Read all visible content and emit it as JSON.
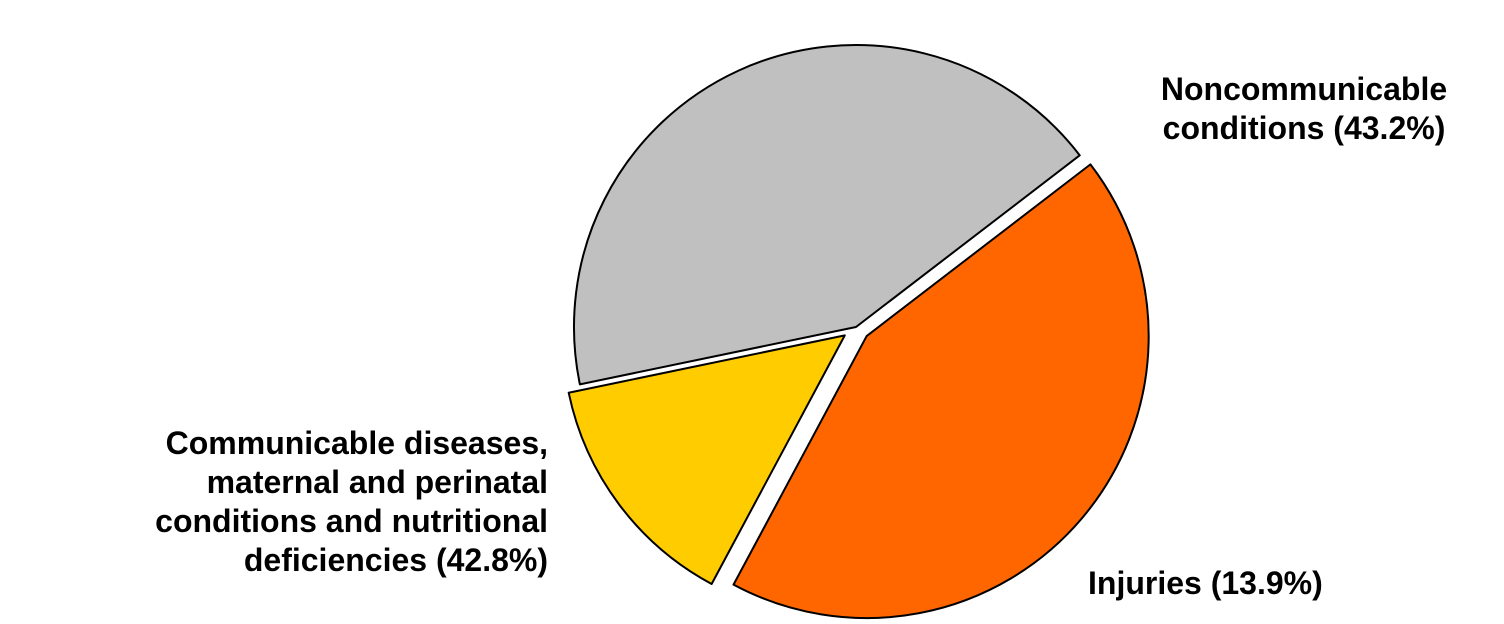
{
  "chart_data": {
    "type": "pie",
    "slices": [
      {
        "name": "Noncommunicable conditions",
        "label": "Noncommunicable\nconditions (43.2%)",
        "value": 43.2,
        "color": "#FF6600",
        "exploded": true
      },
      {
        "name": "Injuries",
        "label": "Injuries (13.9%)",
        "value": 13.9,
        "color": "#FFCC00",
        "exploded": true
      },
      {
        "name": "Communicable diseases, maternal and perinatal conditions and nutritional deficiencies",
        "label": "Communicable diseases,\nmaternal and perinatal\nconditions and nutritional\ndeficiencies (42.8%)",
        "value": 42.8,
        "color": "#C0C0C0",
        "exploded": false
      }
    ],
    "title": "",
    "legend": "none"
  }
}
